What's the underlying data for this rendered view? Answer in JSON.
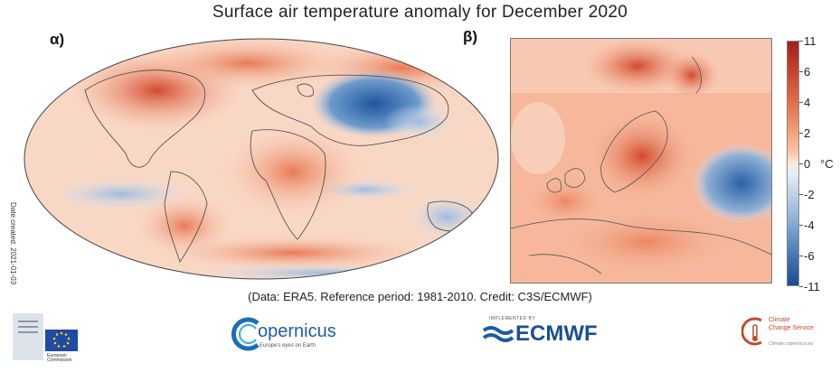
{
  "title": "Surface air temperature anomaly for December 2020",
  "panels": {
    "left_label": "α)",
    "right_label": "β)"
  },
  "date_created": "Date created: 2021-01-03",
  "colorbar": {
    "unit": "°C",
    "ticks": [
      "11",
      "6",
      "4",
      "2",
      "0",
      "-2",
      "-4",
      "-6",
      "-11"
    ],
    "colors": {
      "max": "#a31d1d",
      "warm": "#e06b45",
      "neutral": "#fbe9e0",
      "cool": "#7ea6cf",
      "min": "#1b4c8f"
    }
  },
  "caption": "(Data: ERA5.  Reference period: 1981-2010.  Credit: C3S/ECMWF)",
  "logos": {
    "eu_line1": "European",
    "eu_line2": "Commission",
    "copernicus_name": "opernicus",
    "copernicus_sub": "Europe's eyes on Earth",
    "ecmwf_top": "IMPLEMENTED BY",
    "ecmwf_name": "ECMWF",
    "c3s_line1": "Climate",
    "c3s_line2": "Change Service",
    "c3s_line3": "Climate.copernicus.eu"
  }
}
